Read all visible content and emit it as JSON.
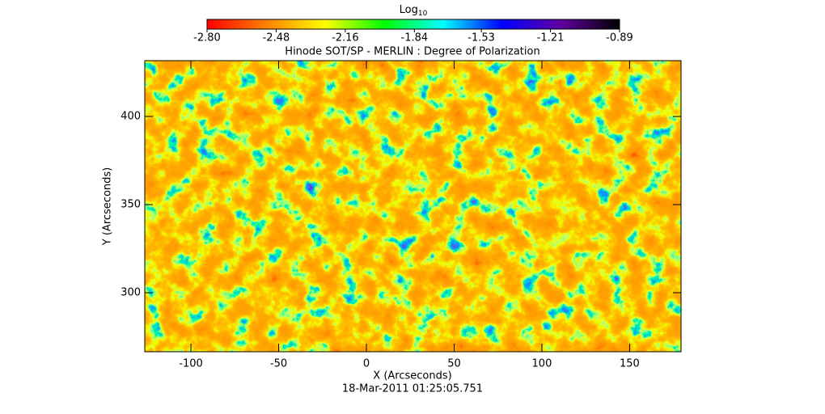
{
  "chart_data": {
    "type": "image",
    "title": "Hinode SOT/SP - MERLIN : Degree of Polarization",
    "x_label": "X (Arcseconds)",
    "y_label": "Y (Arcseconds)",
    "date": "18-Mar-2011 01:25:05.751",
    "xlim": [
      -126.3,
      179.3
    ],
    "xticks": [
      -100,
      -50,
      0,
      50,
      100,
      150
    ],
    "ylim": [
      266.5,
      431.7
    ],
    "yticks": [
      300,
      350,
      400
    ],
    "colorbar": {
      "label": "Log",
      "label_subscript": "10",
      "lim": [
        -2.8,
        -0.89
      ],
      "ticks": [
        {
          "value": -2.8,
          "label": "-2.80"
        },
        -2.48,
        -2.16,
        -1.84,
        -1.53,
        -1.21,
        -0.89
      ],
      "colormap": [
        "#ff0000",
        "#ff8000",
        "#ffff00",
        "#00ff00",
        "#00ffff",
        "#0000ff",
        "#6000a0",
        "#000000"
      ]
    }
  }
}
